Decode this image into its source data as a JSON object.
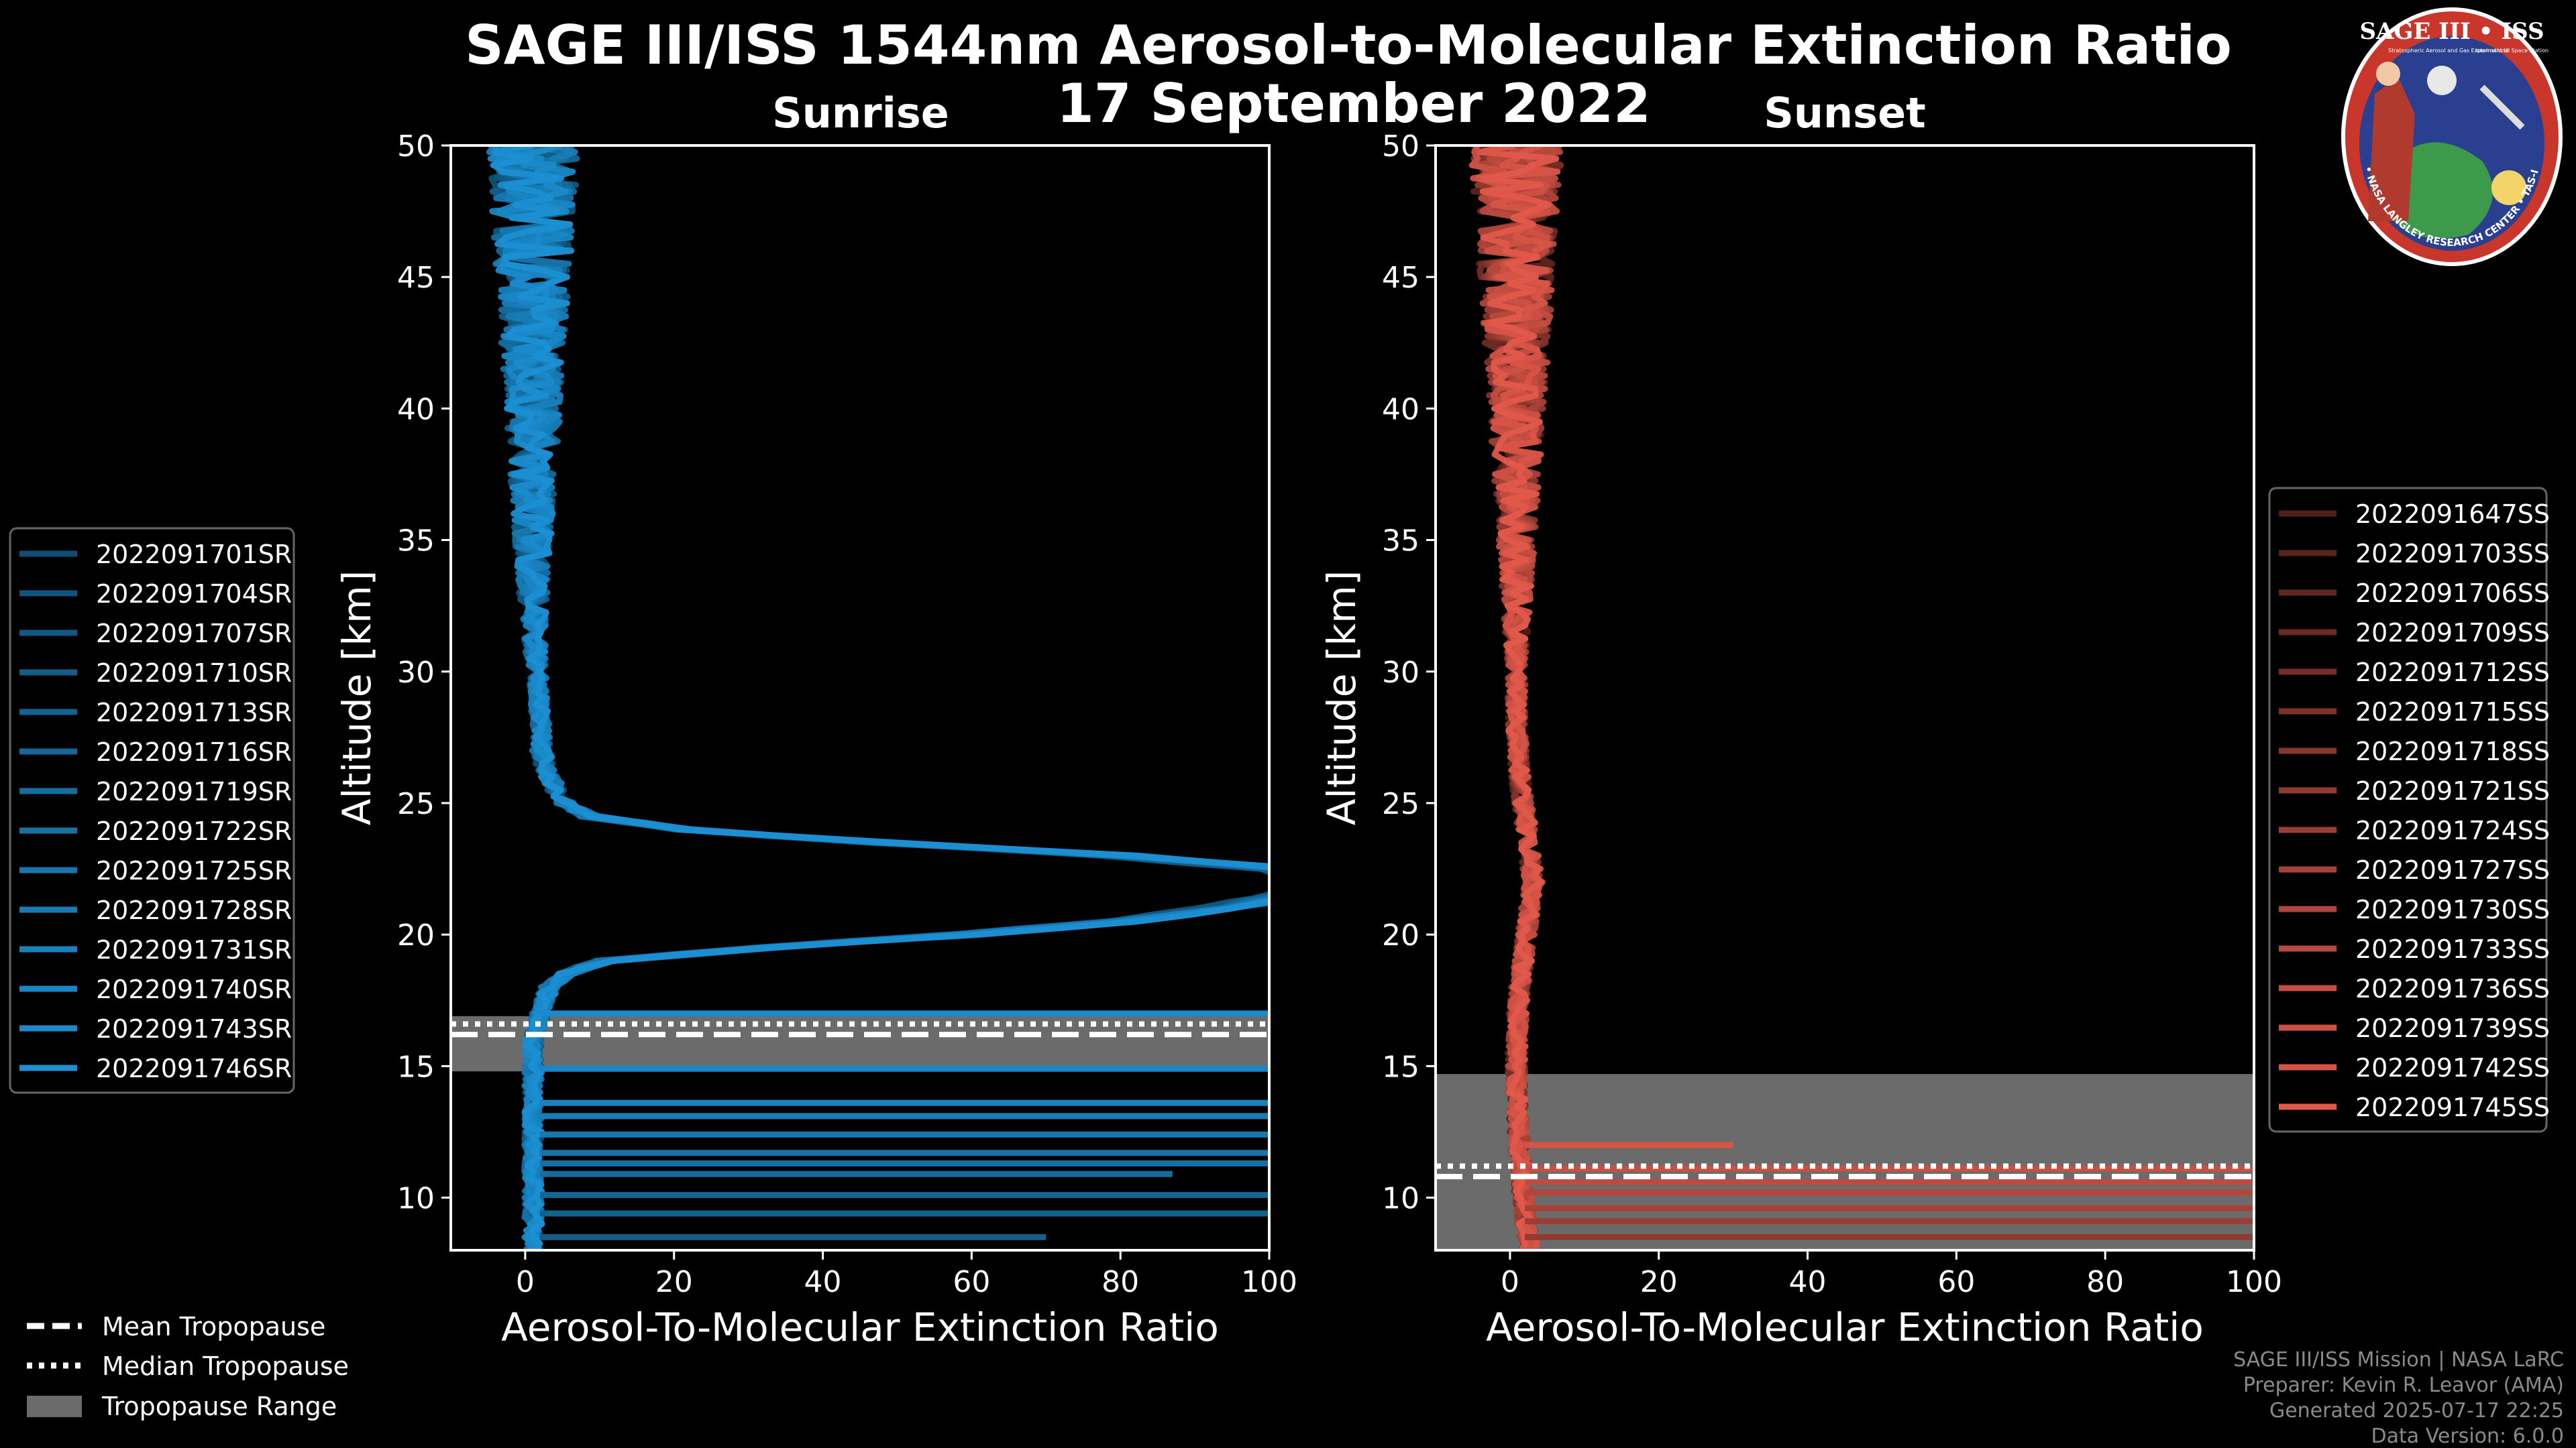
{
  "title": "SAGE III/ISS 1544nm Aerosol-to-Molecular Extinction Ratio",
  "date": "17 September 2022",
  "logo": {
    "name": "SAGE III • ISS",
    "subtitle_left": "Stratospheric Aerosol and Gas Experiment III",
    "subtitle_right": "International Space Station",
    "ring_text": "BALL • NASA LANGLEY RESEARCH CENTER • TAS-I • ESA"
  },
  "footer": [
    "SAGE III/ISS Mission | NASA LaRC",
    "Preparer: Kevin R. Leavor (AMA)",
    "Generated 2025-07-17 22:25",
    "Data Version: 6.0.0"
  ],
  "tropopause_legend": [
    {
      "label": "Mean Tropopause",
      "style": "dashed"
    },
    {
      "label": "Median Tropopause",
      "style": "dotted"
    },
    {
      "label": "Tropopause Range",
      "style": "patch"
    }
  ],
  "colors": {
    "sunrise": "#1b8fd2",
    "sunset": "#e0584a",
    "range_patch": "#6b6b6b",
    "background": "#000000"
  },
  "chart_data": [
    {
      "type": "line",
      "title": "Sunrise",
      "xlabel": "Aerosol-To-Molecular Extinction Ratio",
      "ylabel": "Altitude [km]",
      "xlim": [
        -10,
        100
      ],
      "ylim": [
        8,
        50
      ],
      "xticks": [
        0,
        20,
        40,
        60,
        80,
        100
      ],
      "yticks": [
        10,
        15,
        20,
        25,
        30,
        35,
        40,
        45,
        50
      ],
      "tropopause": {
        "mean": 16.2,
        "median": 16.6,
        "range": [
          14.8,
          16.9
        ]
      },
      "profile": {
        "altitude": [
          8,
          9,
          10,
          11,
          12,
          13,
          14,
          15,
          16,
          17,
          18,
          18.5,
          19,
          19.5,
          20,
          20.5,
          21,
          21.5,
          22,
          22.5,
          23,
          23.5,
          24,
          24.5,
          25,
          26,
          27,
          28,
          30,
          32,
          35,
          38,
          40,
          42,
          44,
          46,
          48,
          50
        ],
        "ratio": [
          1,
          1,
          1,
          1,
          1,
          1,
          1,
          1,
          1,
          2,
          3,
          5,
          10,
          30,
          55,
          75,
          88,
          96,
          100,
          95,
          75,
          45,
          20,
          8,
          5,
          3,
          2,
          2,
          1.5,
          1,
          1,
          1,
          1,
          1,
          1,
          1,
          1,
          1
        ]
      },
      "series": [
        {
          "name": "2022091701SR"
        },
        {
          "name": "2022091704SR"
        },
        {
          "name": "2022091707SR"
        },
        {
          "name": "2022091710SR"
        },
        {
          "name": "2022091713SR"
        },
        {
          "name": "2022091716SR"
        },
        {
          "name": "2022091719SR"
        },
        {
          "name": "2022091722SR"
        },
        {
          "name": "2022091725SR"
        },
        {
          "name": "2022091728SR"
        },
        {
          "name": "2022091731SR"
        },
        {
          "name": "2022091740SR"
        },
        {
          "name": "2022091743SR"
        },
        {
          "name": "2022091746SR"
        }
      ],
      "spikes": [
        {
          "alt": 8.5,
          "to": 70
        },
        {
          "alt": 9.4,
          "to": 100
        },
        {
          "alt": 10.1,
          "to": 100
        },
        {
          "alt": 10.9,
          "to": 87
        },
        {
          "alt": 11.3,
          "to": 100
        },
        {
          "alt": 11.7,
          "to": 100
        },
        {
          "alt": 12.4,
          "to": 100
        },
        {
          "alt": 13.1,
          "to": 100
        },
        {
          "alt": 13.6,
          "to": 100
        },
        {
          "alt": 14.9,
          "to": 100
        },
        {
          "alt": 17.0,
          "to": 100
        }
      ]
    },
    {
      "type": "line",
      "title": "Sunset",
      "xlabel": "Aerosol-To-Molecular Extinction Ratio",
      "ylabel": "Altitude [km]",
      "xlim": [
        -10,
        100
      ],
      "ylim": [
        8,
        50
      ],
      "xticks": [
        0,
        20,
        40,
        60,
        80,
        100
      ],
      "yticks": [
        10,
        15,
        20,
        25,
        30,
        35,
        40,
        45,
        50
      ],
      "tropopause": {
        "mean": 10.8,
        "median": 11.2,
        "range": [
          8,
          14.7
        ]
      },
      "profile": {
        "altitude": [
          8,
          9,
          10,
          11,
          12,
          13,
          14,
          15,
          16,
          17,
          18,
          19,
          20,
          21,
          22,
          23,
          24,
          25,
          26,
          28,
          30,
          32,
          35,
          38,
          40,
          42,
          44,
          46,
          48,
          50
        ],
        "ratio": [
          3,
          2.5,
          2,
          1.8,
          1.5,
          1.2,
          1,
          1,
          1,
          1.2,
          1.5,
          2,
          2.5,
          3,
          3.5,
          3,
          2.5,
          2,
          1.5,
          1,
          1,
          1,
          1,
          1,
          1,
          1,
          1,
          1,
          1,
          1
        ]
      },
      "series": [
        {
          "name": "2022091647SS"
        },
        {
          "name": "2022091703SS"
        },
        {
          "name": "2022091706SS"
        },
        {
          "name": "2022091709SS"
        },
        {
          "name": "2022091712SS"
        },
        {
          "name": "2022091715SS"
        },
        {
          "name": "2022091718SS"
        },
        {
          "name": "2022091721SS"
        },
        {
          "name": "2022091724SS"
        },
        {
          "name": "2022091727SS"
        },
        {
          "name": "2022091730SS"
        },
        {
          "name": "2022091733SS"
        },
        {
          "name": "2022091736SS"
        },
        {
          "name": "2022091739SS"
        },
        {
          "name": "2022091742SS"
        },
        {
          "name": "2022091745SS"
        }
      ],
      "spikes": [
        {
          "alt": 8.5,
          "to": 100
        },
        {
          "alt": 9.1,
          "to": 100
        },
        {
          "alt": 9.6,
          "to": 100
        },
        {
          "alt": 10.2,
          "to": 100
        },
        {
          "alt": 10.6,
          "to": 100
        },
        {
          "alt": 11.1,
          "to": 100
        },
        {
          "alt": 12.0,
          "to": 30
        }
      ]
    }
  ]
}
